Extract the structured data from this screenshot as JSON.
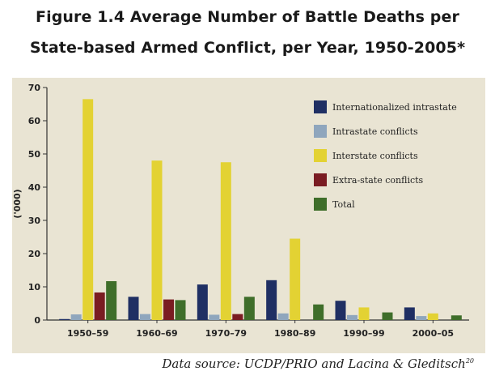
{
  "chart_data": {
    "type": "bar",
    "title_line1": "Figure 1.4 Average Number of Battle Deaths per",
    "title_line2": "State-based Armed Conflict, per Year, 1950-2005*",
    "xlabel": "",
    "ylabel": "('000)",
    "ylim": [
      0,
      70
    ],
    "yticks": [
      0,
      10,
      20,
      30,
      40,
      50,
      60,
      70
    ],
    "categories": [
      "1950–59",
      "1960–69",
      "1970–79",
      "1980–89",
      "1990–99",
      "2000–05"
    ],
    "series": [
      {
        "name": "Internationalized intrastate",
        "color": "#1f2f63",
        "values": [
          0.3,
          7,
          10.7,
          12,
          5.8,
          3.8
        ]
      },
      {
        "name": "Intrastate conflicts",
        "color": "#8fa6bd",
        "values": [
          1.7,
          1.8,
          1.6,
          2,
          1.5,
          1.2
        ]
      },
      {
        "name": "Interstate conflicts",
        "color": "#e3d233",
        "values": [
          66.5,
          48,
          47.5,
          24.5,
          3.8,
          2
        ]
      },
      {
        "name": "Extra-state conflicts",
        "color": "#7a1c22",
        "values": [
          8.3,
          6.2,
          1.8,
          0,
          0,
          0
        ]
      },
      {
        "name": "Total",
        "color": "#3f6e2a",
        "values": [
          11.7,
          6,
          7,
          4.7,
          2.3,
          1.4
        ]
      }
    ],
    "legend_position": "top-right",
    "grid": false
  },
  "source": {
    "text": "Data source: UCDP/PRIO and Lacina & Gleditsch",
    "sup": "20"
  }
}
